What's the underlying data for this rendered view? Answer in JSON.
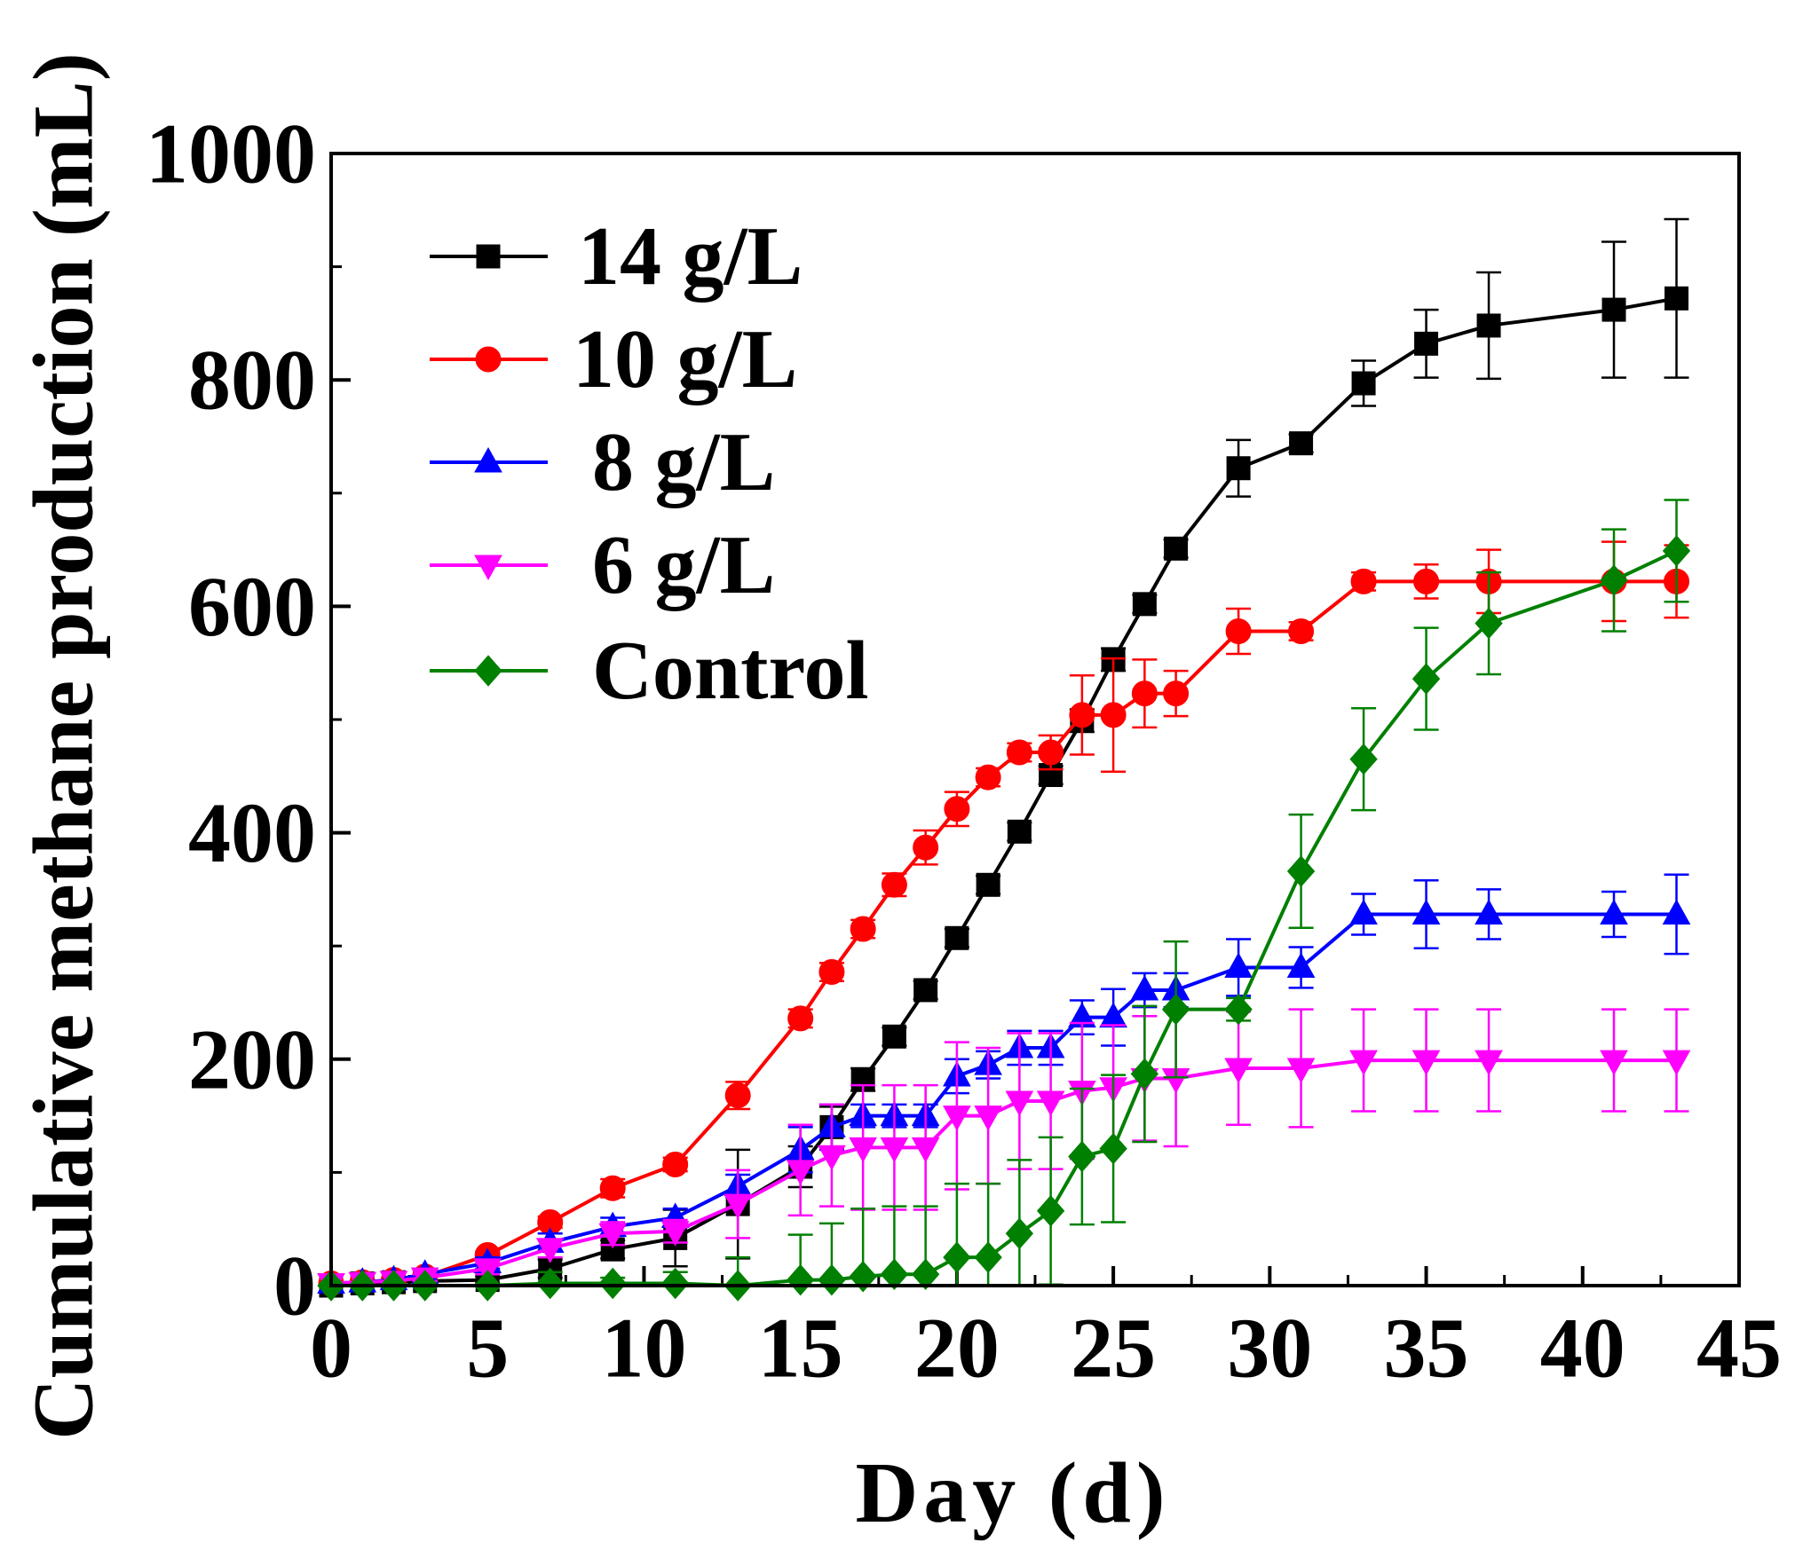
{
  "chart_data": {
    "type": "line",
    "xlabel": "Day (d)",
    "ylabel": "Cumulative methane production (mL)",
    "xlim": [
      0,
      45
    ],
    "ylim": [
      0,
      1000
    ],
    "xticks": [
      0,
      5,
      10,
      15,
      20,
      25,
      30,
      35,
      40,
      45
    ],
    "yticks": [
      0,
      200,
      400,
      600,
      800,
      1000
    ],
    "x_minor_step": 2.5,
    "y_minor_step": 100,
    "grid": false,
    "legend_position": "top-left",
    "x": [
      0,
      1,
      2,
      3,
      5,
      7,
      9,
      11,
      13,
      15,
      16,
      17,
      18,
      19,
      20,
      21,
      22,
      23,
      24,
      25,
      26,
      27,
      29,
      31,
      33,
      35,
      37,
      41,
      43
    ],
    "series": [
      {
        "name": "14 g/L",
        "color": "#000000",
        "marker": "square",
        "y": [
          0,
          2,
          3,
          4,
          5,
          15,
          32,
          42,
          72,
          105,
          140,
          182,
          220,
          261,
          307,
          354,
          401,
          451,
          499,
          553,
          602,
          651,
          722,
          744,
          797,
          832,
          848,
          862,
          872
        ],
        "err": [
          0,
          0,
          0,
          0,
          3,
          8,
          8,
          25,
          48,
          18,
          18,
          10,
          8,
          8,
          8,
          8,
          8,
          8,
          10,
          10,
          8,
          8,
          25,
          8,
          20,
          30,
          47,
          60,
          70
        ]
      },
      {
        "name": "10 g/L",
        "color": "#ff0000",
        "marker": "circle",
        "y": [
          2,
          3,
          5,
          8,
          27,
          56,
          86,
          107,
          168,
          236,
          277,
          315,
          354,
          387,
          421,
          449,
          471,
          471,
          504,
          504,
          523,
          523,
          578,
          578,
          622,
          622,
          622,
          622,
          622
        ],
        "err": [
          0,
          0,
          0,
          0,
          3,
          5,
          8,
          6,
          12,
          8,
          8,
          8,
          10,
          15,
          15,
          8,
          8,
          15,
          35,
          50,
          30,
          20,
          20,
          8,
          8,
          15,
          28,
          35,
          32
        ]
      },
      {
        "name": "8 g/L",
        "color": "#0000ff",
        "marker": "triangle-up",
        "y": [
          2,
          3,
          5,
          10,
          20,
          38,
          52,
          60,
          88,
          120,
          140,
          150,
          150,
          150,
          185,
          195,
          210,
          210,
          237,
          237,
          261,
          261,
          281,
          281,
          328,
          328,
          328,
          328,
          328
        ],
        "err": [
          0,
          0,
          0,
          5,
          5,
          8,
          8,
          8,
          10,
          20,
          20,
          10,
          10,
          10,
          15,
          12,
          15,
          15,
          15,
          25,
          15,
          15,
          25,
          18,
          18,
          30,
          22,
          20,
          35
        ]
      },
      {
        "name": "6 g/L",
        "color": "#ff00ff",
        "marker": "triangle-down",
        "y": [
          2,
          3,
          4,
          7,
          15,
          33,
          46,
          48,
          72,
          102,
          115,
          122,
          122,
          122,
          150,
          150,
          163,
          163,
          172,
          175,
          183,
          183,
          192,
          192,
          199,
          199,
          199,
          199,
          199
        ],
        "err": [
          0,
          0,
          0,
          3,
          5,
          8,
          10,
          10,
          30,
          40,
          45,
          55,
          55,
          55,
          65,
          60,
          60,
          60,
          60,
          55,
          55,
          60,
          50,
          52,
          45,
          45,
          45,
          45,
          45
        ]
      },
      {
        "name": "Control",
        "color": "#008000",
        "marker": "diamond",
        "y": [
          0,
          0,
          0,
          0,
          0,
          2,
          2,
          2,
          0,
          5,
          5,
          8,
          10,
          10,
          25,
          25,
          46,
          66,
          114,
          121,
          187,
          244,
          244,
          366,
          465,
          536,
          585,
          623,
          649
        ],
        "err": [
          0,
          0,
          0,
          0,
          0,
          10,
          5,
          10,
          25,
          40,
          50,
          60,
          60,
          60,
          65,
          65,
          65,
          65,
          60,
          65,
          60,
          60,
          10,
          50,
          45,
          45,
          45,
          45,
          45
        ]
      }
    ]
  }
}
